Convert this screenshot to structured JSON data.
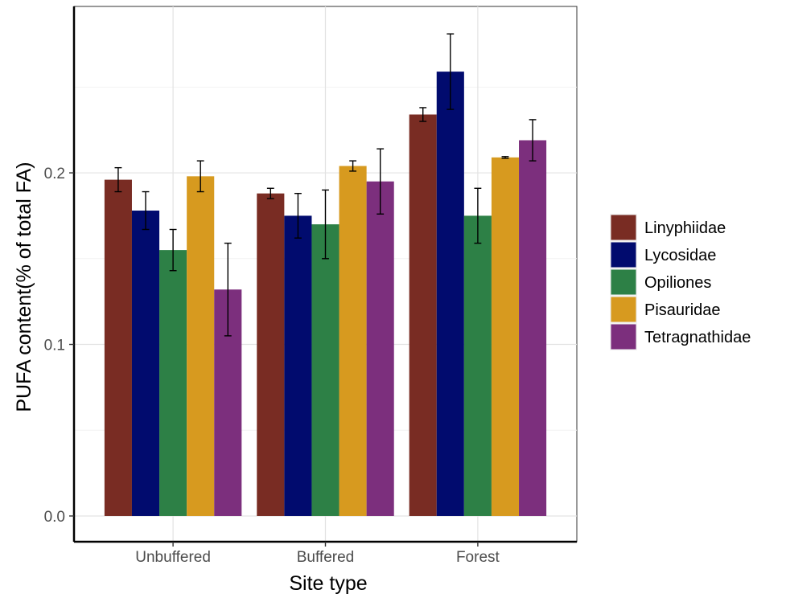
{
  "chart_data": {
    "type": "bar",
    "title": "",
    "xlabel": "Site type",
    "ylabel": "PUFA content(% of total FA)",
    "categories": [
      "Unbuffered",
      "Buffered",
      "Forest"
    ],
    "ylim": [
      -0.015,
      0.297
    ],
    "yticks": [
      0.0,
      0.1,
      0.2
    ],
    "ytick_labels": [
      "0.0",
      "0.1",
      "0.2"
    ],
    "grid": true,
    "legend_position": "right",
    "series": [
      {
        "name": "Linyphiidae",
        "color": "#792c23",
        "values": [
          0.196,
          0.188,
          0.234
        ],
        "errors": [
          0.007,
          0.003,
          0.004
        ]
      },
      {
        "name": "Lycosidae",
        "color": "#010b6e",
        "values": [
          0.178,
          0.175,
          0.259
        ],
        "errors": [
          0.011,
          0.013,
          0.022
        ]
      },
      {
        "name": "Opiliones",
        "color": "#2d8046",
        "values": [
          0.155,
          0.17,
          0.175
        ],
        "errors": [
          0.012,
          0.02,
          0.016
        ]
      },
      {
        "name": "Pisauridae",
        "color": "#d79a1f",
        "values": [
          0.198,
          0.204,
          0.209
        ],
        "errors": [
          0.009,
          0.003,
          0.0005
        ]
      },
      {
        "name": "Tetragnathidae",
        "color": "#7c2f7d",
        "values": [
          0.132,
          0.195,
          0.219
        ],
        "errors": [
          0.027,
          0.019,
          0.012
        ]
      }
    ]
  }
}
